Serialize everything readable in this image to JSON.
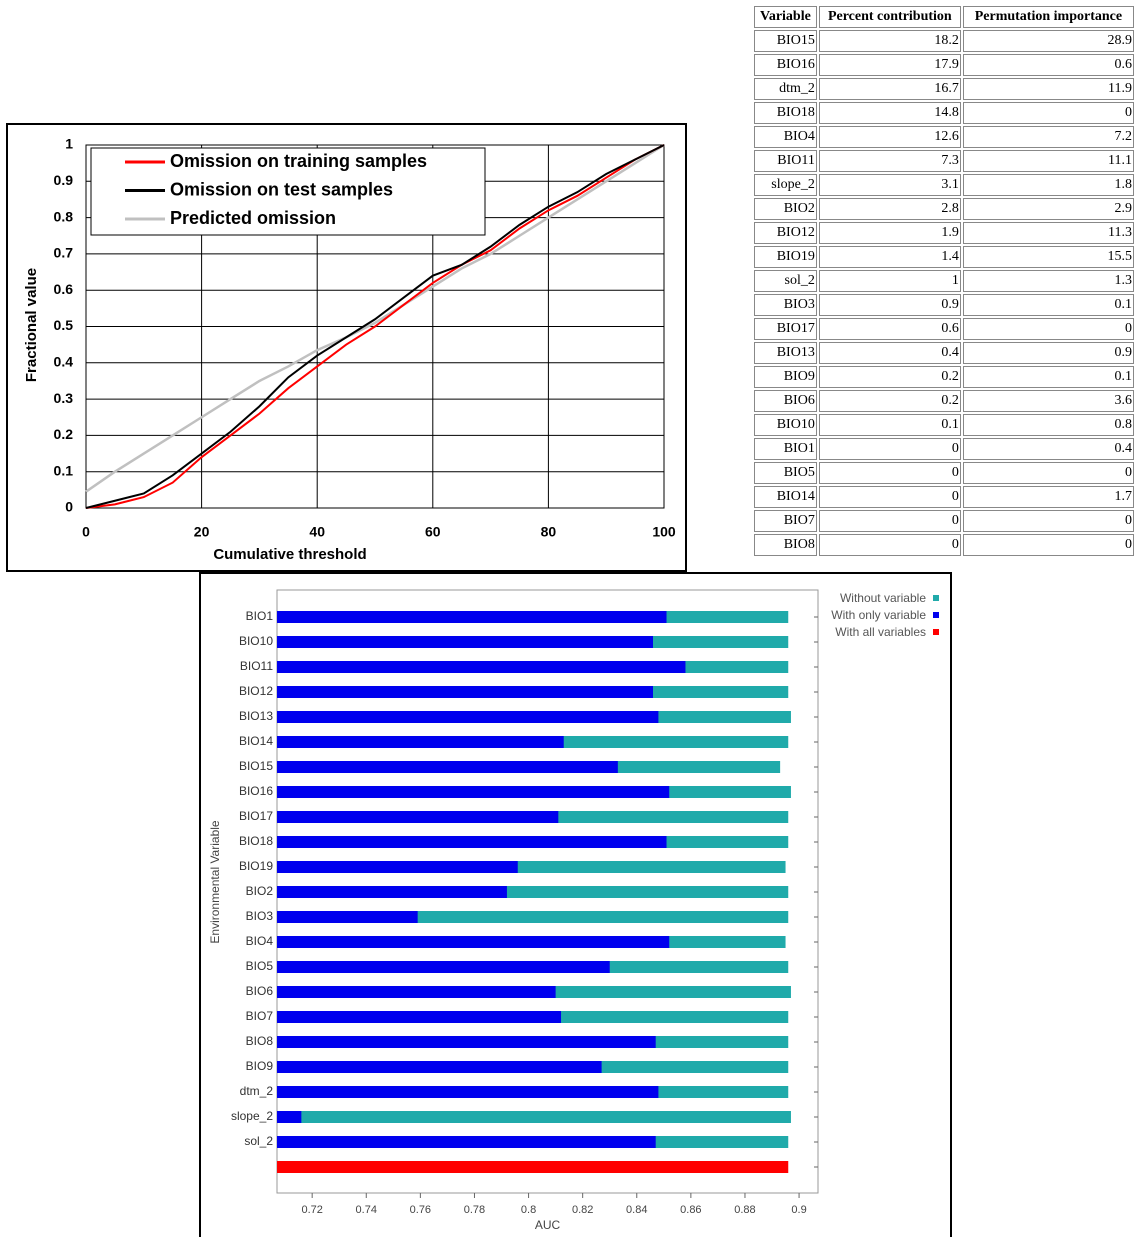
{
  "chart_data": [
    {
      "type": "line",
      "xlabel": "Cumulative threshold",
      "ylabel": "Fractional value",
      "x": [
        0,
        5,
        10,
        15,
        20,
        25,
        30,
        35,
        40,
        45,
        50,
        55,
        60,
        65,
        70,
        75,
        80,
        85,
        90,
        95,
        100
      ],
      "series": [
        {
          "name": "Omission on training samples",
          "color": "#ff0000",
          "values": [
            0,
            0.01,
            0.03,
            0.07,
            0.14,
            0.2,
            0.26,
            0.33,
            0.39,
            0.45,
            0.5,
            0.56,
            0.62,
            0.67,
            0.71,
            0.77,
            0.82,
            0.86,
            0.91,
            0.96,
            1
          ]
        },
        {
          "name": "Omission on test samples",
          "color": "#000000",
          "values": [
            0,
            0.02,
            0.04,
            0.09,
            0.15,
            0.21,
            0.28,
            0.36,
            0.42,
            0.47,
            0.52,
            0.58,
            0.64,
            0.67,
            0.72,
            0.78,
            0.83,
            0.87,
            0.92,
            0.96,
            1
          ]
        },
        {
          "name": "Predicted omission",
          "color": "#c0c0c0",
          "values": [
            0.045,
            0.1,
            0.15,
            0.2,
            0.25,
            0.3,
            0.35,
            0.39,
            0.435,
            0.47,
            0.51,
            0.56,
            0.61,
            0.66,
            0.7,
            0.75,
            0.8,
            0.85,
            0.9,
            0.95,
            1
          ]
        }
      ],
      "xlim": [
        0,
        100
      ],
      "xticks": [
        0,
        20,
        40,
        60,
        80,
        100
      ],
      "ylim": [
        0,
        1
      ],
      "yticks": [
        0,
        0.1,
        0.2,
        0.3,
        0.4,
        0.5,
        0.6,
        0.7,
        0.8,
        0.9,
        1
      ],
      "grid": true,
      "legend": "upper left"
    },
    {
      "type": "bar",
      "orientation": "horizontal",
      "xlabel": "AUC",
      "ylabel": "Environmental Variable",
      "categories": [
        "BIO1",
        "BIO10",
        "BIO11",
        "BIO12",
        "BIO13",
        "BIO14",
        "BIO15",
        "BIO16",
        "BIO17",
        "BIO18",
        "BIO19",
        "BIO2",
        "BIO3",
        "BIO4",
        "BIO5",
        "BIO6",
        "BIO7",
        "BIO8",
        "BIO9",
        "dtm_2",
        "slope_2",
        "sol_2",
        null
      ],
      "series": [
        {
          "name": "Without variable",
          "color": "#20aaaa",
          "values": [
            0.896,
            0.896,
            0.896,
            0.896,
            0.897,
            0.896,
            0.893,
            0.897,
            0.896,
            0.896,
            0.895,
            0.896,
            0.896,
            0.895,
            0.896,
            0.897,
            0.896,
            0.896,
            0.896,
            0.896,
            0.897,
            0.896,
            null
          ]
        },
        {
          "name": "With only variable",
          "color": "#0000ee",
          "values": [
            0.851,
            0.846,
            0.858,
            0.846,
            0.848,
            0.813,
            0.833,
            0.852,
            0.811,
            0.851,
            0.796,
            0.792,
            0.759,
            0.852,
            0.83,
            0.81,
            0.812,
            0.847,
            0.827,
            0.848,
            0.716,
            0.847,
            null
          ]
        },
        {
          "name": "With all variables",
          "color": "#ff0000",
          "values": [
            null,
            null,
            null,
            null,
            null,
            null,
            null,
            null,
            null,
            null,
            null,
            null,
            null,
            null,
            null,
            null,
            null,
            null,
            null,
            null,
            null,
            null,
            0.896
          ]
        }
      ],
      "xlim": [
        0.707,
        0.907
      ],
      "xticks": [
        0.72,
        0.74,
        0.76,
        0.78,
        0.8,
        0.82,
        0.84,
        0.86,
        0.88,
        0.9
      ],
      "legend": "upper right"
    }
  ],
  "table": {
    "header": [
      "Variable",
      "Percent contribution",
      "Permutation importance"
    ],
    "rows": [
      [
        "BIO15",
        18.2,
        28.9
      ],
      [
        "BIO16",
        17.9,
        0.6
      ],
      [
        "dtm_2",
        16.7,
        11.9
      ],
      [
        "BIO18",
        14.8,
        0
      ],
      [
        "BIO4",
        12.6,
        7.2
      ],
      [
        "BIO11",
        7.3,
        11.1
      ],
      [
        "slope_2",
        3.1,
        1.8
      ],
      [
        "BIO2",
        2.8,
        2.9
      ],
      [
        "BIO12",
        1.9,
        11.3
      ],
      [
        "BIO19",
        1.4,
        15.5
      ],
      [
        "sol_2",
        1,
        1.3
      ],
      [
        "BIO3",
        0.9,
        0.1
      ],
      [
        "BIO17",
        0.6,
        0
      ],
      [
        "BIO13",
        0.4,
        0.9
      ],
      [
        "BIO9",
        0.2,
        0.1
      ],
      [
        "BIO6",
        0.2,
        3.6
      ],
      [
        "BIO10",
        0.1,
        0.8
      ],
      [
        "BIO1",
        0,
        0.4
      ],
      [
        "BIO5",
        0,
        0
      ],
      [
        "BIO14",
        0,
        1.7
      ],
      [
        "BIO7",
        0,
        0
      ],
      [
        "BIO8",
        0,
        0
      ]
    ]
  }
}
